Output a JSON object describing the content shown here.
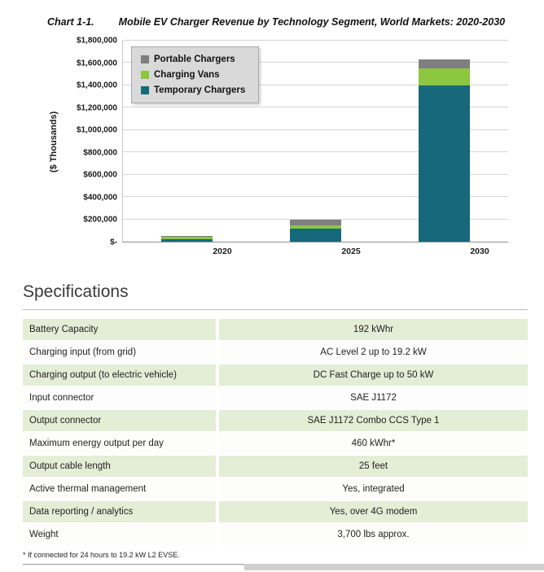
{
  "chart": {
    "caption_prefix": "Chart 1-1.",
    "caption_title": "Mobile EV Charger Revenue by Technology Segment, World Markets: 2020-2030"
  },
  "chart_data": {
    "type": "bar",
    "stacked": true,
    "title": "Mobile EV Charger Revenue by Technology Segment, World Markets: 2020-2030",
    "xlabel": "",
    "ylabel": "($ Thousands)",
    "categories": [
      "2020",
      "2025",
      "2030"
    ],
    "series": [
      {
        "name": "Portable Chargers",
        "color": "#7f7f7f",
        "values": [
          5000,
          55000,
          80000
        ]
      },
      {
        "name": "Charging Vans",
        "color": "#8dc63f",
        "values": [
          25000,
          25000,
          150000
        ]
      },
      {
        "name": "Temporary Chargers",
        "color": "#16697a",
        "values": [
          20000,
          120000,
          1400000
        ]
      }
    ],
    "ylim": [
      0,
      1800000
    ],
    "ytick_step": 200000,
    "ytick_labels": [
      "$-",
      "$200,000",
      "$400,000",
      "$600,000",
      "$800,000",
      "$1,000,000",
      "$1,200,000",
      "$1,400,000",
      "$1,600,000",
      "$1,800,000"
    ],
    "legend_position": "upper-left",
    "grid": true
  },
  "specifications": {
    "heading": "Specifications",
    "rows": [
      {
        "label": "Battery Capacity",
        "value": "192 kWhr"
      },
      {
        "label": "Charging input (from grid)",
        "value": "AC Level 2 up to 19.2 kW"
      },
      {
        "label": "Charging output (to electric vehicle)",
        "value": "DC Fast Charge up to 50 kW"
      },
      {
        "label": "Input connector",
        "value": "SAE J1172"
      },
      {
        "label": "Output connector",
        "value": "SAE J1172 Combo CCS Type 1"
      },
      {
        "label": "Maximum energy output per day",
        "value": "460 kWhr*"
      },
      {
        "label": "Output cable length",
        "value": "25 feet"
      },
      {
        "label": "Active thermal management",
        "value": "Yes, integrated"
      },
      {
        "label": "Data reporting / analytics",
        "value": "Yes, over 4G modem"
      },
      {
        "label": "Weight",
        "value": "3,700 lbs approx."
      }
    ],
    "footnote": "* If connected for 24 hours to 19.2 kW L2 EVSE."
  }
}
